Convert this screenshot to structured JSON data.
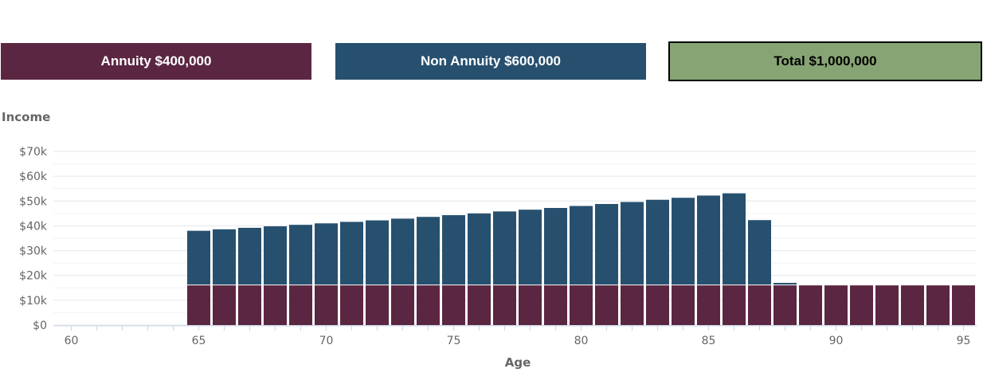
{
  "summary": {
    "annuity_label": "Annuity $400,000",
    "non_annuity_label": "Non Annuity $600,000",
    "total_label": "Total $1,000,000"
  },
  "colors": {
    "annuity": "#5b2642",
    "non_annuity": "#27506f",
    "total": "#87a574",
    "grid": "#e3e6ea",
    "axis": "#ccd6eb",
    "text": "#666666"
  },
  "chart_data": {
    "type": "bar",
    "stacked": true,
    "xlabel": "Age",
    "ylabel": "Income",
    "x_ticks": [
      60,
      65,
      70,
      75,
      80,
      85,
      90,
      95
    ],
    "y_ticks": [
      0,
      10000,
      20000,
      30000,
      40000,
      50000,
      60000,
      70000
    ],
    "y_tick_labels": [
      "$0",
      "$10k",
      "$20k",
      "$30k",
      "$40k",
      "$50k",
      "$60k",
      "$70k"
    ],
    "xlim": [
      59.5,
      95.5
    ],
    "ylim": [
      0,
      70000
    ],
    "grid": true,
    "categories": [
      60,
      61,
      62,
      63,
      64,
      65,
      66,
      67,
      68,
      69,
      70,
      71,
      72,
      73,
      74,
      75,
      76,
      77,
      78,
      79,
      80,
      81,
      82,
      83,
      84,
      85,
      86,
      87,
      88,
      89,
      90,
      91,
      92,
      93,
      94,
      95
    ],
    "series": [
      {
        "name": "Annuity",
        "color": "#5b2642",
        "values": [
          0,
          0,
          0,
          0,
          0,
          16000,
          16000,
          16000,
          16000,
          16000,
          16000,
          16000,
          16000,
          16000,
          16000,
          16000,
          16000,
          16000,
          16000,
          16000,
          16000,
          16000,
          16000,
          16000,
          16000,
          16000,
          16000,
          16000,
          16000,
          16000,
          16000,
          16000,
          16000,
          16000,
          16000,
          16000
        ]
      },
      {
        "name": "Non Annuity",
        "color": "#27506f",
        "values": [
          0,
          0,
          0,
          0,
          0,
          22000,
          22600,
          23200,
          23800,
          24400,
          25000,
          25600,
          26200,
          26900,
          27600,
          28300,
          29000,
          29800,
          30500,
          31200,
          32000,
          32800,
          33600,
          34500,
          35300,
          36200,
          37100,
          26300,
          1000,
          0,
          0,
          0,
          0,
          0,
          0,
          0
        ]
      }
    ]
  }
}
